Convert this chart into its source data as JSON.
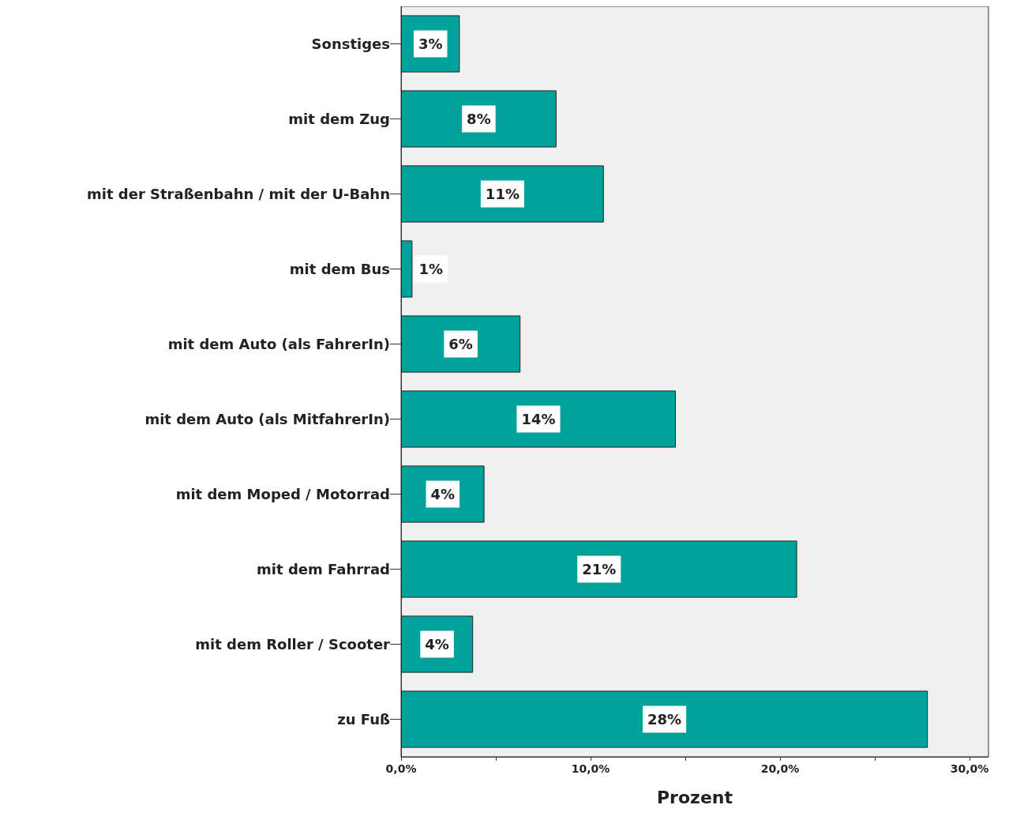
{
  "chart_data": {
    "type": "bar",
    "orientation": "horizontal",
    "xlabel": "Prozent",
    "categories": [
      "Sonstiges",
      "mit dem Zug",
      "mit der Straßenbahn / mit der U-Bahn",
      "mit dem Bus",
      "mit dem Auto (als FahrerIn)",
      "mit dem Auto (als MitfahrerIn)",
      "mit dem Moped / Motorrad",
      "mit dem Fahrrad",
      "mit dem Roller / Scooter",
      "zu Fuß"
    ],
    "values": [
      3.1,
      8.2,
      10.7,
      0.6,
      6.3,
      14.5,
      4.4,
      20.9,
      3.8,
      27.8
    ],
    "value_labels": [
      "3%",
      "8%",
      "11%",
      "1%",
      "6%",
      "14%",
      "4%",
      "21%",
      "4%",
      "28%"
    ],
    "color": "#00a39b",
    "xlim": [
      0,
      31
    ],
    "xticks": [
      {
        "value": 0,
        "label": "0,0%"
      },
      {
        "value": 5,
        "label": null
      },
      {
        "value": 10,
        "label": "10,0%"
      },
      {
        "value": 15,
        "label": null
      },
      {
        "value": 20,
        "label": "20,0%"
      },
      {
        "value": 25,
        "label": null
      },
      {
        "value": 30,
        "label": "30,0%"
      }
    ],
    "grid": false
  }
}
